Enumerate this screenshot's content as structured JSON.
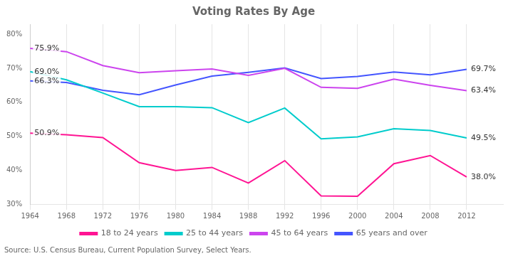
{
  "chart_data": {
    "type": "line",
    "title": "Voting Rates By Age",
    "annotations": [
      {
        "text": "Source: U.S. Census Bureau, Current Population Survey, Select Years."
      }
    ],
    "x": [
      1964,
      1968,
      1972,
      1976,
      1980,
      1984,
      1988,
      1992,
      1996,
      2000,
      2004,
      2008,
      2012
    ],
    "xlim": [
      1964,
      2016
    ],
    "xticks": [
      1964,
      1968,
      1972,
      1976,
      1980,
      1984,
      1988,
      1992,
      1996,
      2000,
      2004,
      2008,
      2012
    ],
    "ylim": [
      30,
      83
    ],
    "yticks": [
      {
        "value": 30,
        "label": "30%"
      },
      {
        "value": 40,
        "label": "40%"
      },
      {
        "value": 50,
        "label": "50%"
      },
      {
        "value": 60,
        "label": "60%"
      },
      {
        "value": 70,
        "label": "70%"
      },
      {
        "value": 80,
        "label": "80%"
      }
    ],
    "grid": "x",
    "legend": "bottom",
    "data_labels": true,
    "series": [
      {
        "name": "18 to 24 years",
        "color": "#ff1493",
        "values": [
          50.9,
          50.4,
          49.6,
          42.2,
          39.9,
          40.8,
          36.2,
          42.8,
          32.4,
          32.3,
          41.9,
          44.3,
          38.0
        ],
        "value_labels": [
          "50.9%",
          null,
          null,
          null,
          null,
          null,
          null,
          null,
          null,
          null,
          null,
          null,
          "38.0%"
        ]
      },
      {
        "name": "25 to 44 years",
        "color": "#00cccc",
        "values": [
          69.0,
          66.6,
          62.7,
          58.7,
          58.7,
          58.4,
          54.0,
          58.3,
          49.2,
          49.8,
          52.2,
          51.7,
          49.5
        ],
        "value_labels": [
          "69.0%",
          null,
          null,
          null,
          null,
          null,
          null,
          null,
          null,
          null,
          null,
          null,
          "49.5%"
        ]
      },
      {
        "name": "45 to 64 years",
        "color": "#cc44ee",
        "values": [
          75.9,
          74.9,
          70.8,
          68.7,
          69.3,
          69.8,
          67.9,
          70.0,
          64.4,
          64.1,
          66.8,
          65.0,
          63.4
        ],
        "value_labels": [
          "75.9%",
          null,
          null,
          null,
          null,
          null,
          null,
          null,
          null,
          null,
          null,
          null,
          "63.4%"
        ]
      },
      {
        "name": "65 years and over",
        "color": "#4455ff",
        "values": [
          66.3,
          65.8,
          63.5,
          62.2,
          65.1,
          67.7,
          68.8,
          70.1,
          67.0,
          67.6,
          68.9,
          68.1,
          69.7
        ],
        "value_labels": [
          "66.3%",
          null,
          null,
          null,
          null,
          null,
          null,
          null,
          null,
          null,
          null,
          null,
          "69.7%"
        ]
      }
    ]
  }
}
